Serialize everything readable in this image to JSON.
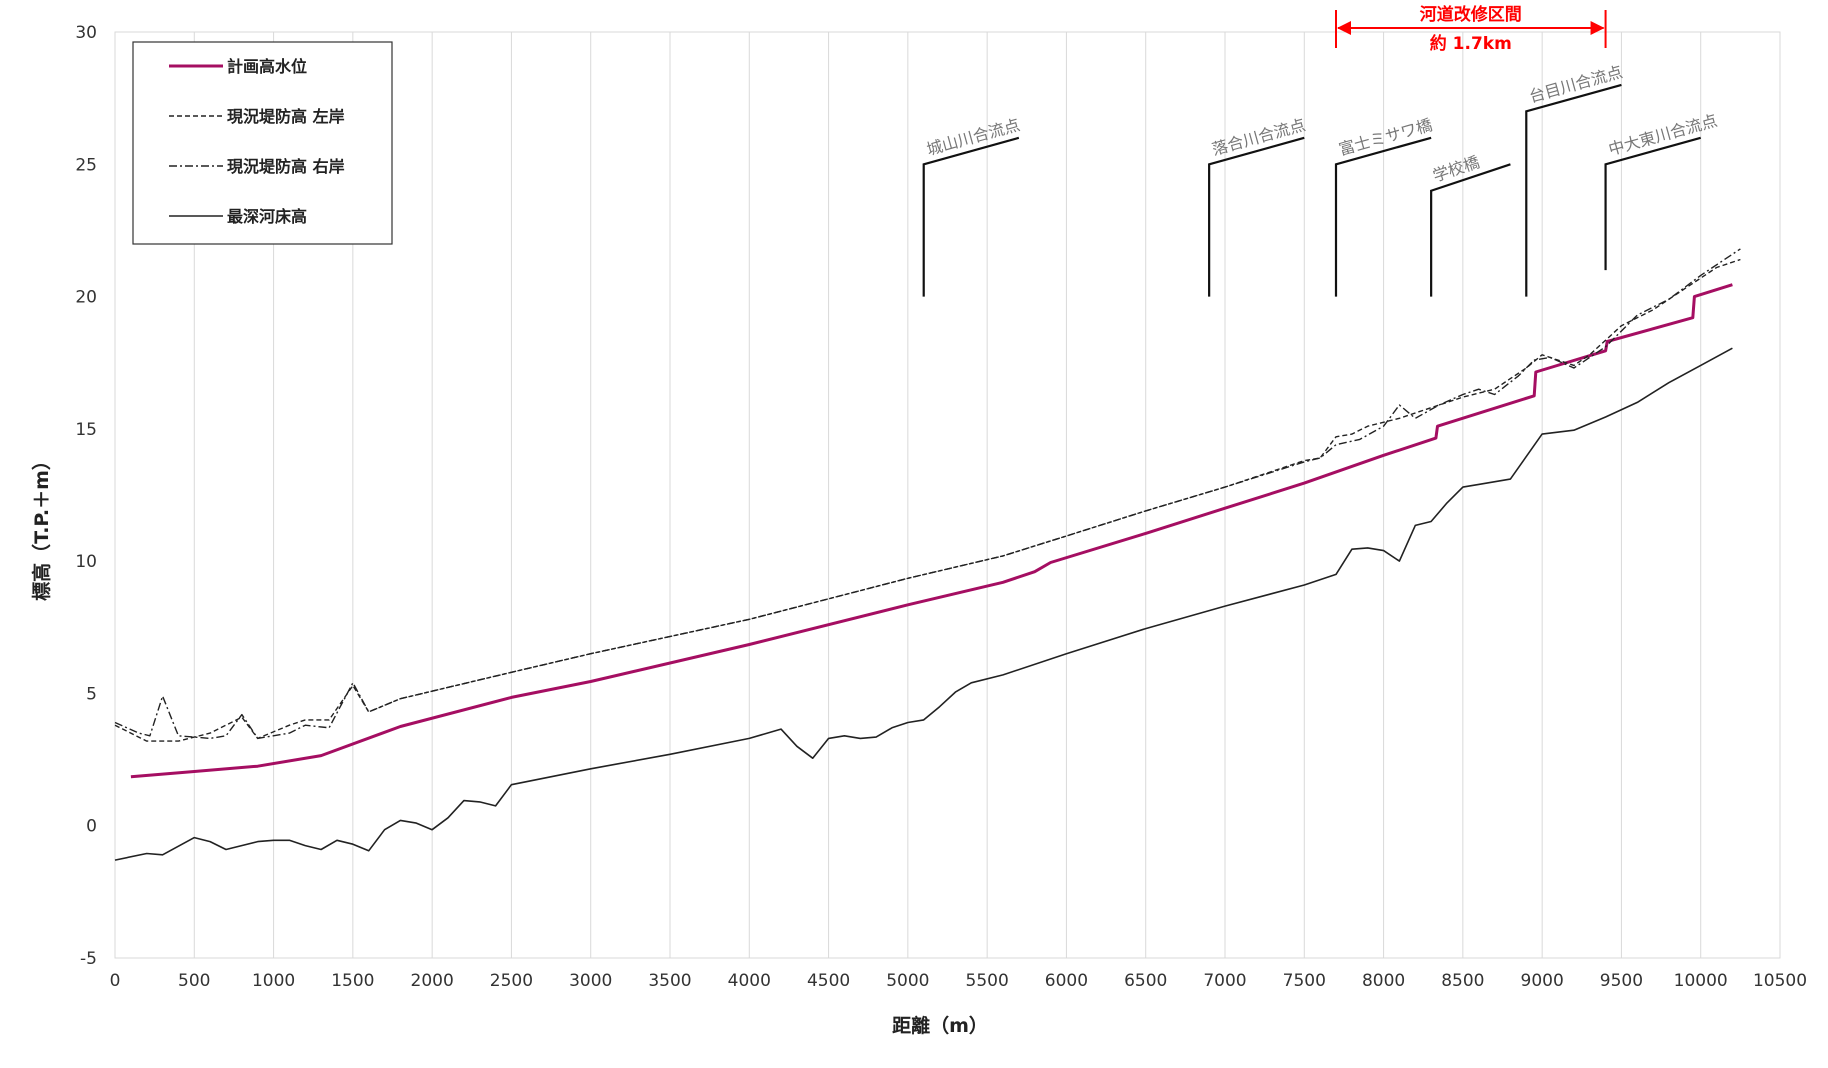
{
  "chart_data": {
    "type": "line",
    "title": "",
    "xlabel": "距離（m）",
    "ylabel": "標高（T.P.＋m）",
    "xlim": [
      0,
      10500
    ],
    "ylim": [
      -5,
      30
    ],
    "x_ticks": [
      "0",
      "500",
      "1000",
      "1500",
      "2000",
      "2500",
      "3000",
      "3500",
      "4000",
      "4500",
      "5000",
      "5500",
      "6000",
      "6500",
      "7000",
      "7500",
      "8000",
      "8500",
      "9000",
      "9500",
      "10000",
      "10500"
    ],
    "y_ticks": [
      "-5",
      "0",
      "5",
      "10",
      "15",
      "20",
      "25",
      "30"
    ],
    "grid": "vertical",
    "legend_position": "top-left",
    "series": [
      {
        "name": "計画高水位",
        "color": "#a50e62",
        "style": "solid-thick",
        "points": [
          [
            100,
            1.85
          ],
          [
            500,
            2.05
          ],
          [
            900,
            2.25
          ],
          [
            1300,
            2.65
          ],
          [
            1800,
            3.75
          ],
          [
            2500,
            4.85
          ],
          [
            3000,
            5.45
          ],
          [
            4000,
            6.85
          ],
          [
            5000,
            8.35
          ],
          [
            5600,
            9.2
          ],
          [
            5800,
            9.6
          ],
          [
            5900,
            9.95
          ],
          [
            6500,
            11.05
          ],
          [
            7000,
            12.0
          ],
          [
            7500,
            12.95
          ],
          [
            8000,
            14.0
          ],
          [
            8330,
            14.65
          ],
          [
            8340,
            15.1
          ],
          [
            8950,
            16.25
          ],
          [
            8960,
            17.15
          ],
          [
            9400,
            17.95
          ],
          [
            9410,
            18.3
          ],
          [
            9950,
            19.2
          ],
          [
            9960,
            20.0
          ],
          [
            10200,
            20.45
          ]
        ]
      },
      {
        "name": "現況堤防高 左岸",
        "color": "#222222",
        "style": "dashed",
        "points": [
          [
            0,
            3.8
          ],
          [
            200,
            3.2
          ],
          [
            400,
            3.2
          ],
          [
            600,
            3.5
          ],
          [
            800,
            4.1
          ],
          [
            900,
            3.3
          ],
          [
            1100,
            3.8
          ],
          [
            1200,
            4.0
          ],
          [
            1350,
            4.0
          ],
          [
            1500,
            5.3
          ],
          [
            1600,
            4.3
          ],
          [
            1800,
            4.8
          ],
          [
            2500,
            5.8
          ],
          [
            3000,
            6.5
          ],
          [
            4000,
            7.8
          ],
          [
            5000,
            9.35
          ],
          [
            5600,
            10.2
          ],
          [
            6000,
            10.95
          ],
          [
            6500,
            11.9
          ],
          [
            7000,
            12.8
          ],
          [
            7500,
            13.8
          ],
          [
            7600,
            13.9
          ],
          [
            7700,
            14.7
          ],
          [
            7800,
            14.8
          ],
          [
            7900,
            15.1
          ],
          [
            8100,
            15.4
          ],
          [
            8300,
            15.8
          ],
          [
            8500,
            16.2
          ],
          [
            8700,
            16.5
          ],
          [
            8800,
            16.9
          ],
          [
            8900,
            17.3
          ],
          [
            9000,
            17.8
          ],
          [
            9200,
            17.4
          ],
          [
            9300,
            17.8
          ],
          [
            9500,
            18.9
          ],
          [
            9700,
            19.5
          ],
          [
            9900,
            20.3
          ],
          [
            10100,
            21.1
          ],
          [
            10250,
            21.4
          ]
        ]
      },
      {
        "name": "現況堤防高 右岸",
        "color": "#222222",
        "style": "dashdot",
        "points": [
          [
            0,
            3.9
          ],
          [
            150,
            3.5
          ],
          [
            220,
            3.4
          ],
          [
            300,
            4.9
          ],
          [
            400,
            3.4
          ],
          [
            600,
            3.3
          ],
          [
            700,
            3.4
          ],
          [
            800,
            4.2
          ],
          [
            900,
            3.3
          ],
          [
            1100,
            3.5
          ],
          [
            1200,
            3.8
          ],
          [
            1350,
            3.7
          ],
          [
            1500,
            5.4
          ],
          [
            1600,
            4.3
          ],
          [
            1800,
            4.8
          ],
          [
            2500,
            5.8
          ],
          [
            3000,
            6.5
          ],
          [
            4000,
            7.8
          ],
          [
            5000,
            9.35
          ],
          [
            5600,
            10.2
          ],
          [
            6000,
            10.95
          ],
          [
            6500,
            11.9
          ],
          [
            7000,
            12.8
          ],
          [
            7500,
            13.75
          ],
          [
            7600,
            13.9
          ],
          [
            7700,
            14.4
          ],
          [
            7850,
            14.6
          ],
          [
            8000,
            15.1
          ],
          [
            8100,
            15.9
          ],
          [
            8200,
            15.4
          ],
          [
            8350,
            15.9
          ],
          [
            8500,
            16.3
          ],
          [
            8600,
            16.5
          ],
          [
            8700,
            16.3
          ],
          [
            8850,
            17.0
          ],
          [
            8950,
            17.6
          ],
          [
            9050,
            17.7
          ],
          [
            9200,
            17.3
          ],
          [
            9400,
            18.1
          ],
          [
            9600,
            19.3
          ],
          [
            9800,
            19.9
          ],
          [
            10000,
            20.8
          ],
          [
            10250,
            21.8
          ]
        ]
      },
      {
        "name": "最深河床高",
        "color": "#222222",
        "style": "solid-thin",
        "points": [
          [
            0,
            -1.3
          ],
          [
            200,
            -1.05
          ],
          [
            300,
            -1.1
          ],
          [
            500,
            -0.45
          ],
          [
            600,
            -0.6
          ],
          [
            700,
            -0.9
          ],
          [
            900,
            -0.6
          ],
          [
            1000,
            -0.55
          ],
          [
            1100,
            -0.55
          ],
          [
            1200,
            -0.75
          ],
          [
            1300,
            -0.9
          ],
          [
            1400,
            -0.55
          ],
          [
            1500,
            -0.7
          ],
          [
            1600,
            -0.95
          ],
          [
            1700,
            -0.15
          ],
          [
            1800,
            0.2
          ],
          [
            1900,
            0.1
          ],
          [
            2000,
            -0.15
          ],
          [
            2100,
            0.3
          ],
          [
            2200,
            0.95
          ],
          [
            2300,
            0.9
          ],
          [
            2400,
            0.75
          ],
          [
            2500,
            1.55
          ],
          [
            3000,
            2.15
          ],
          [
            3500,
            2.7
          ],
          [
            4000,
            3.3
          ],
          [
            4200,
            3.65
          ],
          [
            4300,
            3.0
          ],
          [
            4400,
            2.55
          ],
          [
            4500,
            3.3
          ],
          [
            4600,
            3.4
          ],
          [
            4700,
            3.3
          ],
          [
            4800,
            3.35
          ],
          [
            4900,
            3.7
          ],
          [
            5000,
            3.9
          ],
          [
            5100,
            4.0
          ],
          [
            5200,
            4.5
          ],
          [
            5300,
            5.05
          ],
          [
            5400,
            5.4
          ],
          [
            5600,
            5.7
          ],
          [
            6000,
            6.5
          ],
          [
            6500,
            7.45
          ],
          [
            7000,
            8.3
          ],
          [
            7500,
            9.1
          ],
          [
            7700,
            9.5
          ],
          [
            7800,
            10.45
          ],
          [
            7900,
            10.5
          ],
          [
            8000,
            10.4
          ],
          [
            8100,
            10.0
          ],
          [
            8200,
            11.35
          ],
          [
            8300,
            11.5
          ],
          [
            8400,
            12.2
          ],
          [
            8500,
            12.8
          ],
          [
            8600,
            12.9
          ],
          [
            8800,
            13.1
          ],
          [
            9000,
            14.8
          ],
          [
            9200,
            14.95
          ],
          [
            9400,
            15.45
          ],
          [
            9600,
            16.0
          ],
          [
            9800,
            16.75
          ],
          [
            10000,
            17.4
          ],
          [
            10200,
            18.05
          ]
        ]
      }
    ],
    "confluence_markers": [
      {
        "label": "城山川合流点",
        "x": 5100,
        "y_bottom": 20,
        "y_top": 25.0,
        "x_end": 5700,
        "y_end": 26.0
      },
      {
        "label": "落合川合流点",
        "x": 6900,
        "y_bottom": 20,
        "y_top": 25.0,
        "x_end": 7500,
        "y_end": 26.0
      },
      {
        "label": "富士ミサワ橋",
        "x": 7700,
        "y_bottom": 20,
        "y_top": 25.0,
        "x_end": 8300,
        "y_end": 26.0
      },
      {
        "label": "学校橋",
        "x": 8300,
        "y_bottom": 20,
        "y_top": 24.0,
        "x_end": 8800,
        "y_end": 25.0
      },
      {
        "label": "台目川合流点",
        "x": 8900,
        "y_bottom": 20,
        "y_top": 27.0,
        "x_end": 9500,
        "y_end": 28.0
      },
      {
        "label": "中大東川合流点",
        "x": 9400,
        "y_bottom": 21,
        "y_top": 25.0,
        "x_end": 10000,
        "y_end": 26.0
      }
    ],
    "annotation": {
      "title": "河道改修区間",
      "length": "約 1.7km",
      "x_start": 7700,
      "x_end": 9400,
      "color": "#ff0000"
    }
  }
}
